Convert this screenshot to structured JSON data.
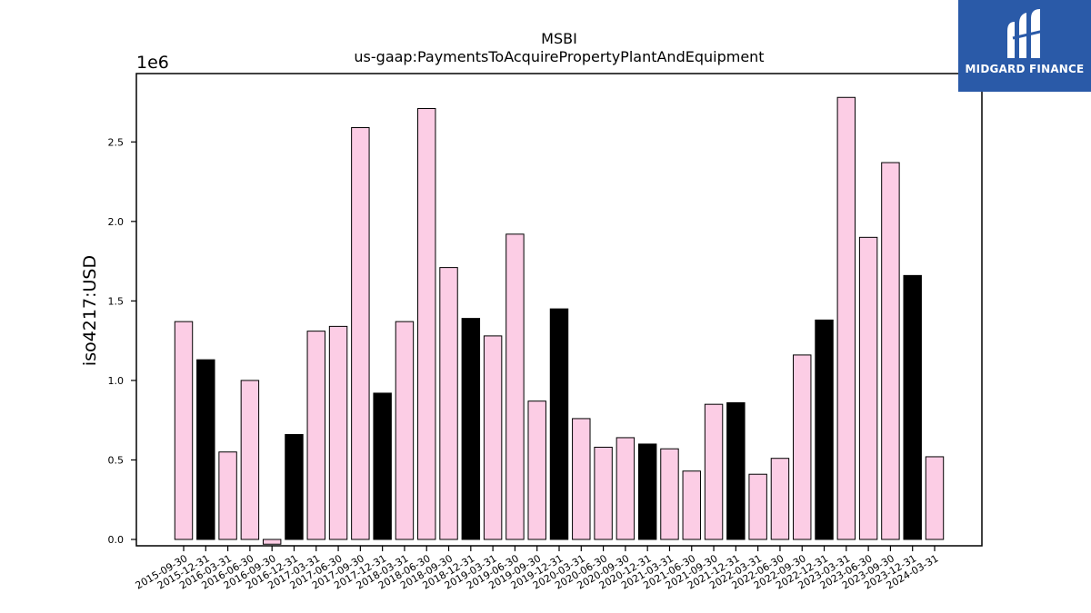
{
  "chart_data": {
    "type": "bar",
    "title": "MSBI",
    "subtitle": "us-gaap:PaymentsToAcquirePropertyPlantAndEquipment",
    "ylabel": "iso4217:USD",
    "xlabel": "",
    "y_offset_label": "1e6",
    "ylim": [
      -40000,
      2930000
    ],
    "yticks": [
      0,
      500000,
      1000000,
      1500000,
      2000000,
      2500000
    ],
    "ytick_labels": [
      "0.0",
      "0.5",
      "1.0",
      "1.5",
      "2.0",
      "2.5"
    ],
    "grid": false,
    "categories": [
      "2015-09-30",
      "2015-12-31",
      "2016-03-31",
      "2016-06-30",
      "2016-09-30",
      "2016-12-31",
      "2017-03-31",
      "2017-06-30",
      "2017-09-30",
      "2017-12-31",
      "2018-03-31",
      "2018-06-30",
      "2018-09-30",
      "2018-12-31",
      "2019-03-31",
      "2019-06-30",
      "2019-09-30",
      "2019-12-31",
      "2020-03-31",
      "2020-06-30",
      "2020-09-30",
      "2020-12-31",
      "2021-03-31",
      "2021-06-30",
      "2021-09-30",
      "2021-12-31",
      "2022-03-31",
      "2022-06-30",
      "2022-09-30",
      "2022-12-31",
      "2023-03-31",
      "2023-06-30",
      "2023-09-30",
      "2023-12-31",
      "2024-03-31"
    ],
    "values": [
      1370000,
      1130000,
      550000,
      1000000,
      -30000,
      660000,
      1310000,
      1340000,
      2590000,
      920000,
      1370000,
      2710000,
      1710000,
      1390000,
      1280000,
      1920000,
      870000,
      1450000,
      760000,
      580000,
      640000,
      600000,
      570000,
      430000,
      850000,
      860000,
      410000,
      510000,
      1160000,
      1380000,
      2780000,
      1900000,
      2370000,
      1660000,
      520000
    ],
    "bar_colors": [
      "#fccde5",
      "#000000",
      "#fccde5",
      "#fccde5",
      "#fccde5",
      "#000000",
      "#fccde5",
      "#fccde5",
      "#fccde5",
      "#000000",
      "#fccde5",
      "#fccde5",
      "#fccde5",
      "#000000",
      "#fccde5",
      "#fccde5",
      "#fccde5",
      "#000000",
      "#fccde5",
      "#fccde5",
      "#fccde5",
      "#000000",
      "#fccde5",
      "#fccde5",
      "#fccde5",
      "#000000",
      "#fccde5",
      "#fccde5",
      "#fccde5",
      "#000000",
      "#fccde5",
      "#fccde5",
      "#fccde5",
      "#000000",
      "#fccde5"
    ]
  },
  "logo": {
    "text": "MIDGARD FINANCE",
    "color": "#2a5aa8"
  }
}
